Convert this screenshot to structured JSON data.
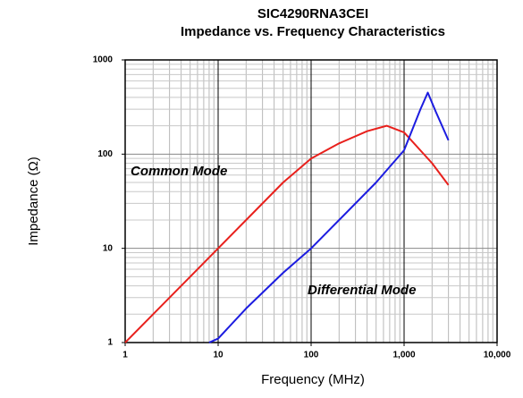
{
  "chart_data": {
    "type": "line",
    "title": "SIC4290RNA3CEI",
    "subtitle": "Impedance vs. Frequency Characteristics",
    "xlabel": "Frequency (MHz)",
    "ylabel": "Impedance (Ω)",
    "xscale": "log",
    "yscale": "log",
    "xlim": [
      1,
      10000
    ],
    "ylim": [
      1,
      1000
    ],
    "xticks": [
      1,
      10,
      100,
      {
        "value": 1000,
        "label": "1,000"
      },
      {
        "value": 10000,
        "label": "10,000"
      }
    ],
    "yticks": [
      1,
      10,
      100,
      1000
    ],
    "grid": true,
    "series": [
      {
        "name": "Common Mode",
        "color": "#e8201c",
        "x": [
          1,
          2,
          5,
          10,
          20,
          50,
          100,
          200,
          400,
          650,
          1000,
          2000,
          3000
        ],
        "values": [
          1,
          2,
          5,
          10,
          20,
          50,
          90,
          130,
          175,
          200,
          170,
          80,
          47
        ]
      },
      {
        "name": "Differential Mode",
        "color": "#1c1ce0",
        "x": [
          8,
          10,
          20,
          50,
          100,
          200,
          500,
          1000,
          1500,
          1800,
          2200,
          3000
        ],
        "values": [
          1,
          1.1,
          2.3,
          5.5,
          10,
          20,
          50,
          110,
          300,
          450,
          280,
          140
        ]
      }
    ]
  }
}
